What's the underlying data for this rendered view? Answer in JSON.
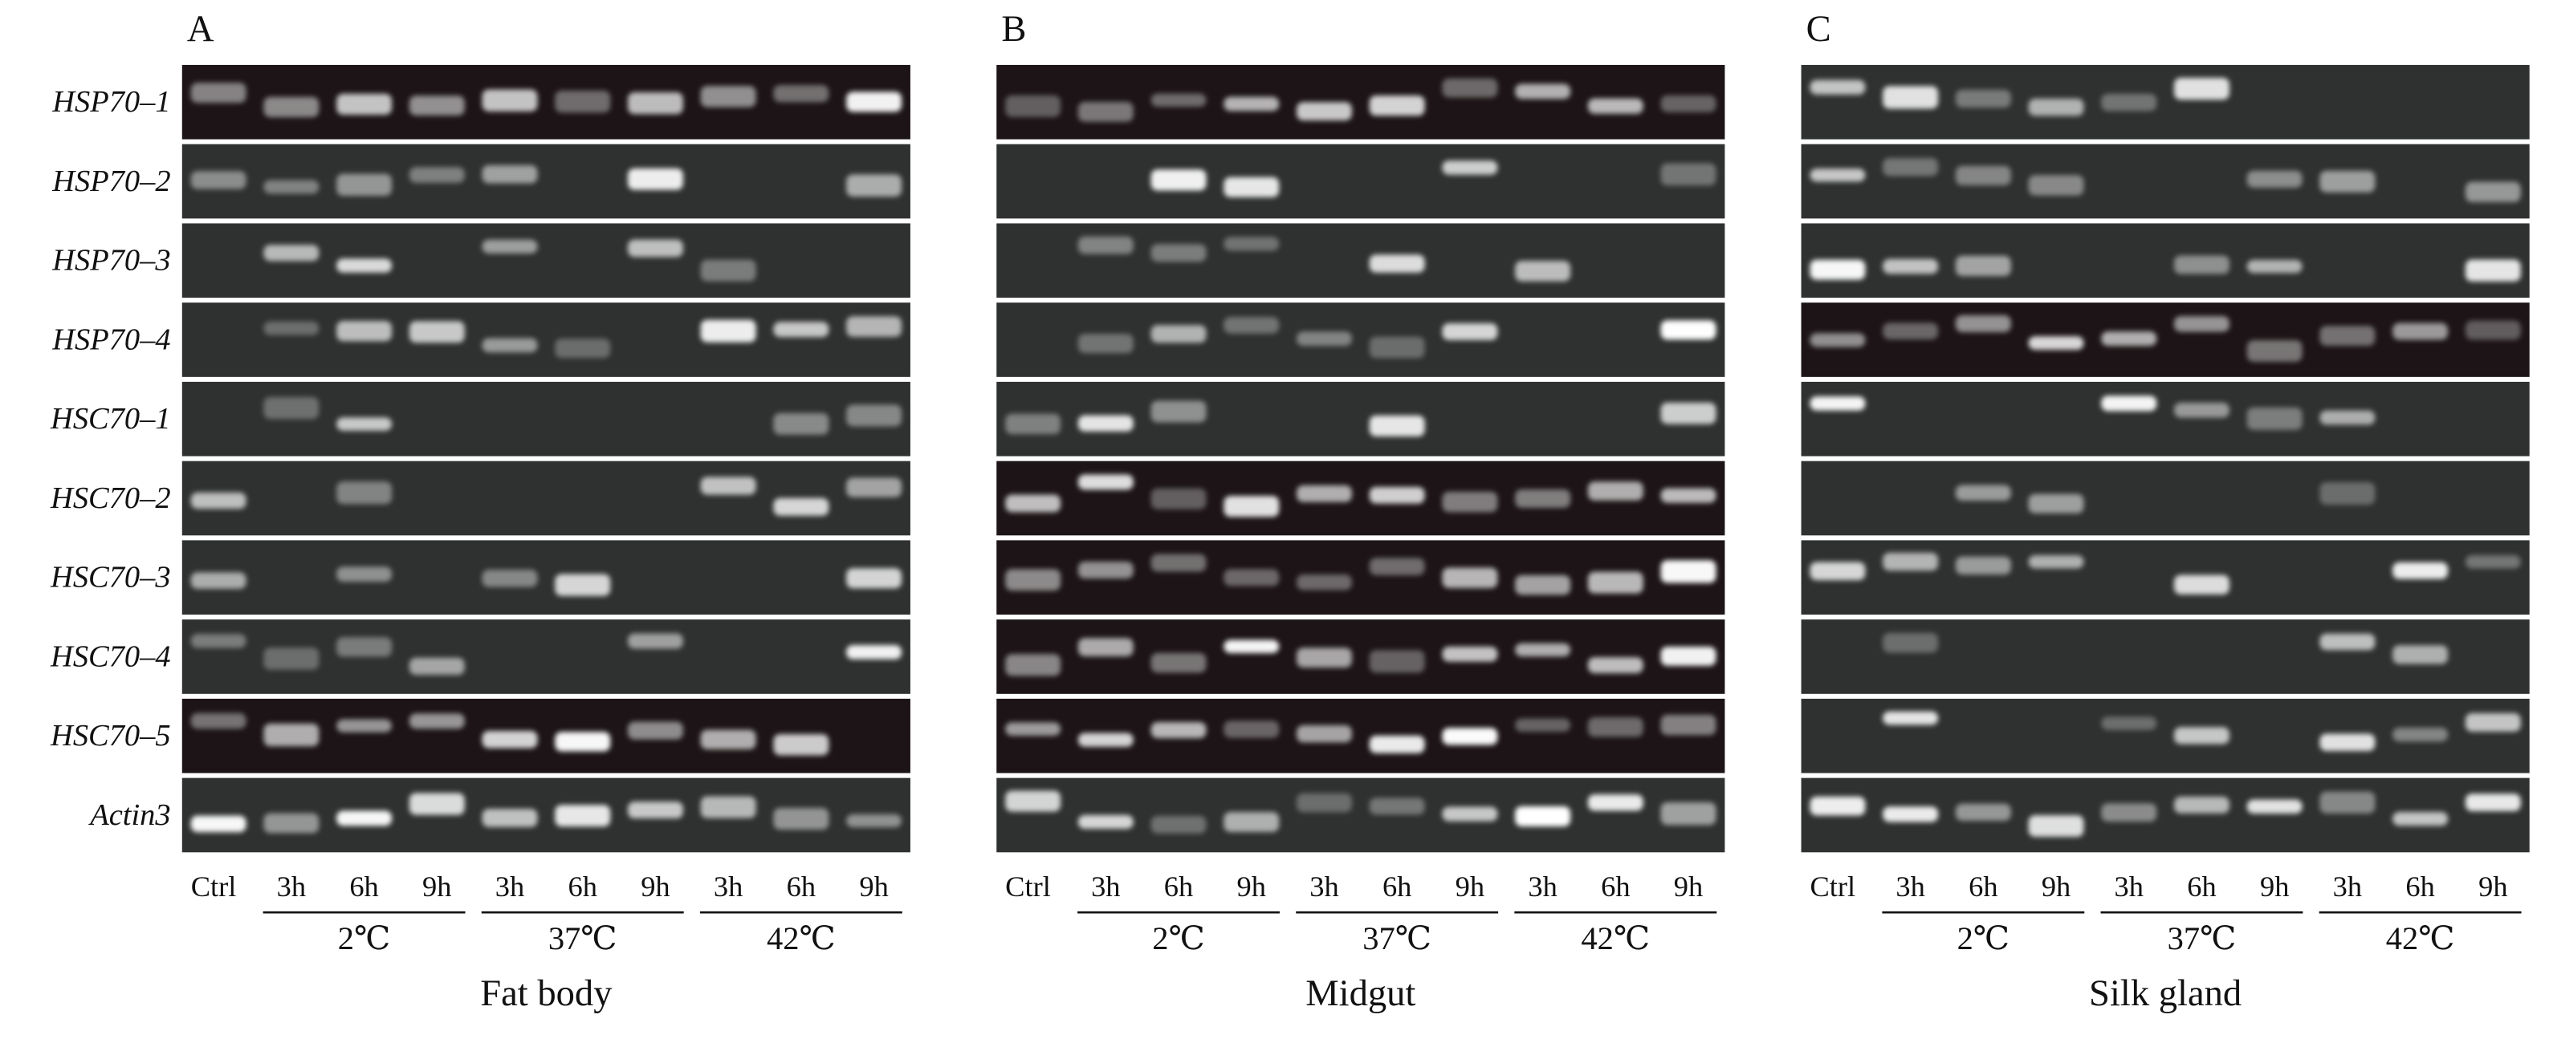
{
  "panels": [
    {
      "letter": "A",
      "tissue": "Fat body"
    },
    {
      "letter": "B",
      "tissue": "Midgut"
    },
    {
      "letter": "C",
      "tissue": "Silk gland"
    }
  ],
  "genes": [
    "HSP70–1",
    "HSP70–2",
    "HSP70–3",
    "HSP70–4",
    "HSC70–1",
    "HSC70–2",
    "HSC70–3",
    "HSC70–4",
    "HSC70–5",
    "Actin3"
  ],
  "lanes": [
    "Ctrl",
    "3h",
    "6h",
    "9h",
    "3h",
    "6h",
    "9h",
    "3h",
    "6h",
    "9h"
  ],
  "temperatures": [
    "2℃",
    "37℃",
    "42℃"
  ]
}
